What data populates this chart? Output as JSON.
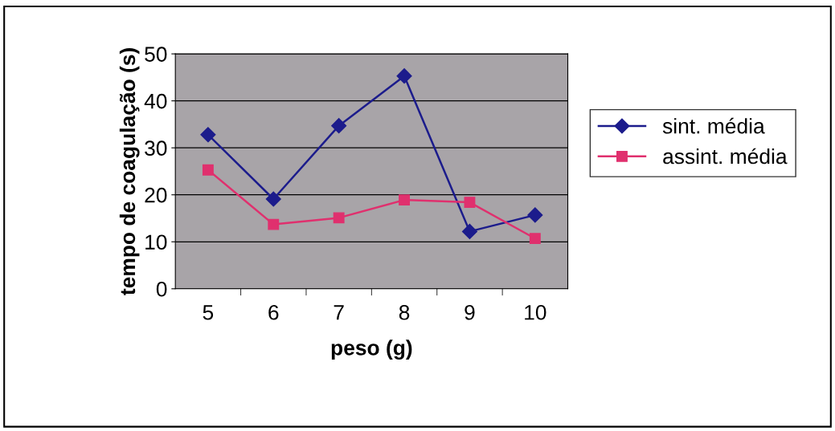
{
  "chart_data": {
    "type": "line",
    "xlabel": "peso (g)",
    "ylabel": "tempo de coagulação (s)",
    "categories": [
      "5",
      "6",
      "7",
      "8",
      "9",
      "10"
    ],
    "series": [
      {
        "name": "sint. média",
        "color": "#1c1c8c",
        "marker": "diamond",
        "values": [
          32.8,
          19.1,
          34.7,
          45.3,
          12.2,
          15.7
        ]
      },
      {
        "name": "assint. média",
        "color": "#e0306e",
        "marker": "square",
        "values": [
          25.3,
          13.7,
          15.1,
          18.9,
          18.4,
          10.7
        ]
      }
    ],
    "ylim": [
      0,
      50
    ],
    "yticks": [
      0,
      10,
      20,
      30,
      40,
      50
    ],
    "grid": "y",
    "legend": "right",
    "line_style": "solid"
  }
}
